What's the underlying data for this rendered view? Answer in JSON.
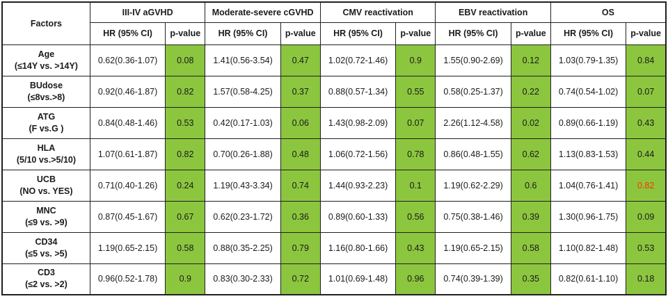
{
  "table": {
    "factors_header": "Factors",
    "groups": [
      "III-IV aGVHD",
      "Moderate-severe cGVHD",
      "CMV reactivation",
      "EBV reactivation",
      "OS"
    ],
    "sub_headers": {
      "hr": "HR (95% CI)",
      "p": "p-value"
    },
    "rows": [
      {
        "factor": "Age",
        "comparison": "(≤14Y vs. >14Y)",
        "cells": [
          {
            "hr": "0.62(0.36-1.07)",
            "p": "0.08"
          },
          {
            "hr": "1.41(0.56-3.54)",
            "p": "0.47"
          },
          {
            "hr": "1.02(0.72-1.46)",
            "p": "0.9"
          },
          {
            "hr": "1.55(0.90-2.69)",
            "p": "0.12"
          },
          {
            "hr": "1.03(0.79-1.35)",
            "p": "0.84"
          }
        ]
      },
      {
        "factor": "BUdose",
        "comparison": "(≤8vs.>8)",
        "cells": [
          {
            "hr": "0.92(0.46-1.87)",
            "p": "0.82"
          },
          {
            "hr": "1.57(0.58-4.25)",
            "p": "0.37"
          },
          {
            "hr": "0.88(0.57-1.34)",
            "p": "0.55"
          },
          {
            "hr": "0.58(0.25-1.37)",
            "p": "0.22"
          },
          {
            "hr": "0.74(0.54-1.02)",
            "p": "0.07"
          }
        ]
      },
      {
        "factor": "ATG",
        "comparison": "(F vs.G )",
        "cells": [
          {
            "hr": "0.84(0.48-1.46)",
            "p": "0.53"
          },
          {
            "hr": "0.42(0.17-1.03)",
            "p": "0.06"
          },
          {
            "hr": "1.43(0.98-2.09)",
            "p": "0.07"
          },
          {
            "hr": "2.26(1.12-4.58)",
            "p": "0.02"
          },
          {
            "hr": "0.89(0.66-1.19)",
            "p": "0.43"
          }
        ]
      },
      {
        "factor": "HLA",
        "comparison": "(5/10 vs.>5/10)",
        "cells": [
          {
            "hr": "1.07(0.61-1.87)",
            "p": "0.82"
          },
          {
            "hr": "0.70(0.26-1.88)",
            "p": "0.48"
          },
          {
            "hr": "1.06(0.72-1.56)",
            "p": "0.78"
          },
          {
            "hr": "0.86(0.48-1.55)",
            "p": "0.62"
          },
          {
            "hr": "1.13(0.83-1.53)",
            "p": "0.44"
          }
        ]
      },
      {
        "factor": "UCB",
        "comparison": "(NO vs. YES)",
        "cells": [
          {
            "hr": "0.71(0.40-1.26)",
            "p": "0.24"
          },
          {
            "hr": "1.19(0.43-3.34)",
            "p": "0.74"
          },
          {
            "hr": "1.44(0.93-2.23)",
            "p": "0.1"
          },
          {
            "hr": "1.19(0.62-2.29)",
            "p": "0.6"
          },
          {
            "hr": "1.04(0.76-1.41)",
            "p": "0.82",
            "p_highlight": true
          }
        ]
      },
      {
        "factor": "MNC",
        "comparison": "(≤9 vs. >9)",
        "cells": [
          {
            "hr": "0.87(0.45-1.67)",
            "p": "0.67"
          },
          {
            "hr": "0.62(0.23-1.72)",
            "p": "0.36"
          },
          {
            "hr": "0.89(0.60-1.33)",
            "p": "0.56"
          },
          {
            "hr": "0.75(0.38-1.46)",
            "p": "0.39"
          },
          {
            "hr": "1.30(0.96-1.75)",
            "p": "0.09"
          }
        ]
      },
      {
        "factor": "CD34",
        "comparison": "(≤5 vs. >5)",
        "cells": [
          {
            "hr": "1.19(0.65-2.15)",
            "p": "0.58"
          },
          {
            "hr": "0.88(0.35-2.25)",
            "p": "0.79"
          },
          {
            "hr": "1.16(0.80-1.66)",
            "p": "0.43"
          },
          {
            "hr": "1.19(0.65-2.15)",
            "p": "0.58"
          },
          {
            "hr": "1.10(0.82-1.48)",
            "p": "0.53"
          }
        ]
      },
      {
        "factor": "CD3",
        "comparison": "(≤2 vs. >2)",
        "cells": [
          {
            "hr": "0.96(0.52-1.78)",
            "p": "0.9"
          },
          {
            "hr": "0.83(0.30-2.33)",
            "p": "0.72"
          },
          {
            "hr": "1.01(0.69-1.48)",
            "p": "0.96"
          },
          {
            "hr": "0.74(0.39-1.39)",
            "p": "0.35"
          },
          {
            "hr": "0.82(0.61-1.10)",
            "p": "0.18"
          }
        ]
      }
    ],
    "colors": {
      "p_cell_bg": "#8cc63f",
      "highlight_p_text": "#ff3300",
      "border": "#1f1f1f",
      "text": "#1a1a1a"
    }
  }
}
